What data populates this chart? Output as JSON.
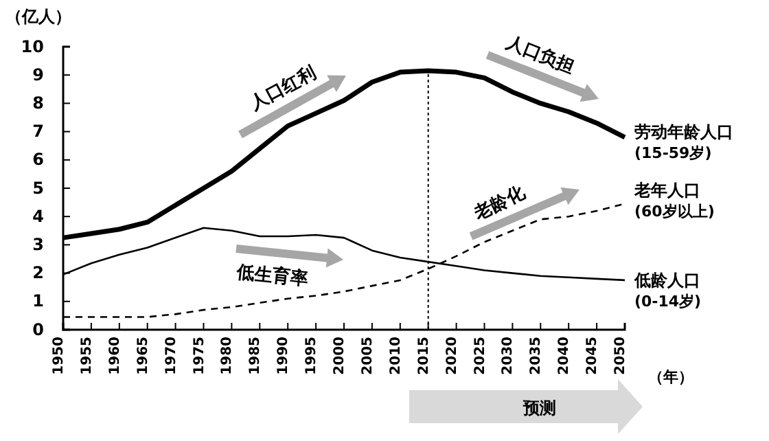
{
  "chart_data": {
    "type": "line",
    "ylabel": "（亿人）",
    "xlabel": "（年）",
    "x": [
      1950,
      1955,
      1960,
      1965,
      1970,
      1975,
      1980,
      1985,
      1990,
      1995,
      2000,
      2005,
      2010,
      2015,
      2020,
      2025,
      2030,
      2035,
      2040,
      2045,
      2050
    ],
    "xlim": [
      1950,
      2050
    ],
    "xticks": [
      1950,
      1955,
      1960,
      1965,
      1970,
      1975,
      1980,
      1985,
      1990,
      1995,
      2000,
      2005,
      2010,
      2015,
      2020,
      2025,
      2030,
      2035,
      2040,
      2045,
      2050
    ],
    "ylim": [
      0,
      10
    ],
    "yticks": [
      0,
      1,
      2,
      3,
      4,
      5,
      6,
      7,
      8,
      9,
      10
    ],
    "grid": false,
    "legend": false,
    "marker": "none",
    "series": [
      {
        "name": "劳动年龄人口\n(15-59岁)",
        "color": "#000000",
        "line_style": "solid",
        "values": [
          3.25,
          3.4,
          3.55,
          3.8,
          4.4,
          5.0,
          5.6,
          6.4,
          7.2,
          7.65,
          8.1,
          8.75,
          9.1,
          9.15,
          9.1,
          8.9,
          8.4,
          8.0,
          7.7,
          7.3,
          6.8
        ]
      },
      {
        "name": "老年人口\n(60岁以上)",
        "color": "#000000",
        "line_style": "dashed",
        "values": [
          0.45,
          0.45,
          0.45,
          0.45,
          0.55,
          0.7,
          0.8,
          0.95,
          1.1,
          1.2,
          1.35,
          1.55,
          1.75,
          2.15,
          2.6,
          3.1,
          3.5,
          3.9,
          4.0,
          4.2,
          4.45
        ]
      },
      {
        "name": "低龄人口\n(0-14岁)",
        "color": "#000000",
        "line_style": "solid",
        "values": [
          1.95,
          2.35,
          2.65,
          2.9,
          3.25,
          3.6,
          3.5,
          3.3,
          3.3,
          3.35,
          3.25,
          2.8,
          2.55,
          2.4,
          2.25,
          2.1,
          2.0,
          1.9,
          1.85,
          1.8,
          1.75
        ]
      }
    ],
    "ref_lines": [
      {
        "axis": "x",
        "value": 2015,
        "label": null,
        "line_style": "dotted",
        "color": "#000000"
      }
    ],
    "annotations": [
      "人口红利",
      "人口负担",
      "老龄化",
      "低生育率",
      "预测"
    ]
  }
}
